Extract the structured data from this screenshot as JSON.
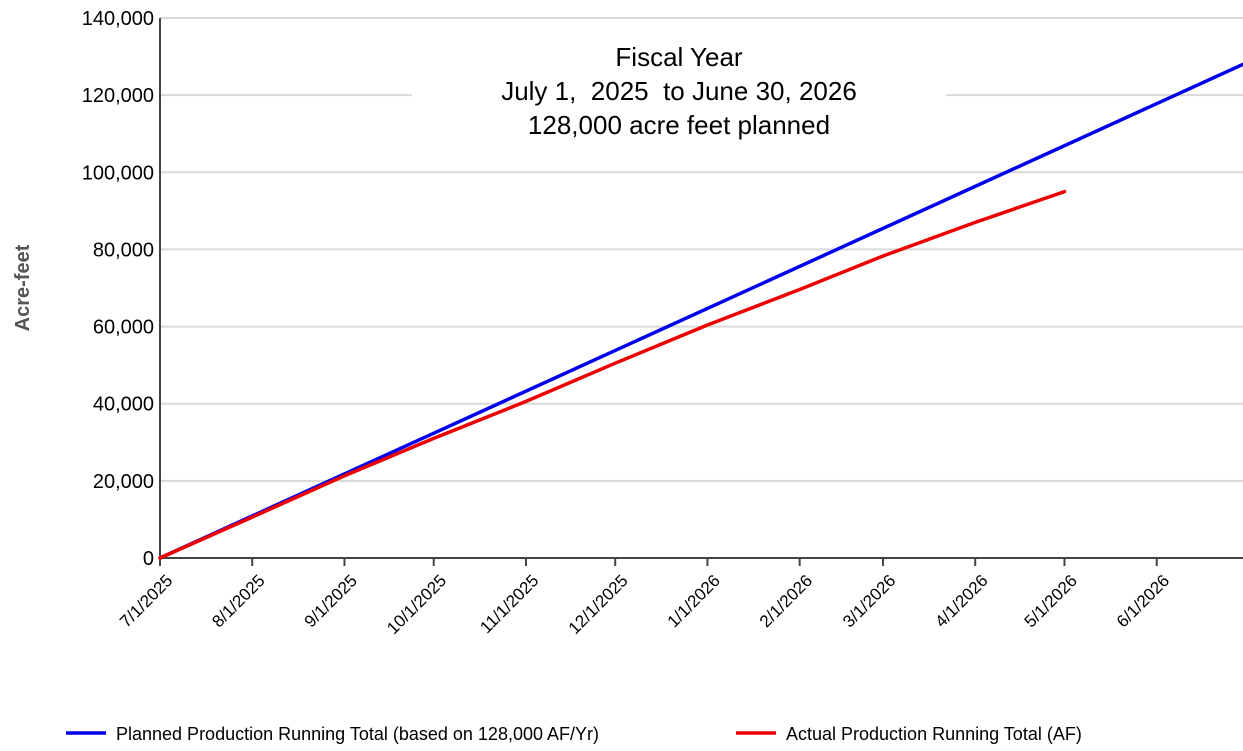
{
  "chart_data": {
    "type": "line",
    "title": "",
    "annotation": [
      "Fiscal Year",
      "July 1,  2025  to June 30, 2026",
      "128,000 acre feet planned"
    ],
    "xlabel": "",
    "ylabel": "Acre-feet",
    "ylim": [
      0,
      140000
    ],
    "xlim": [
      "2025-07-01",
      "2026-06-30"
    ],
    "yticks": [
      0,
      20000,
      40000,
      60000,
      80000,
      100000,
      120000,
      140000
    ],
    "ytick_labels": [
      "0",
      "20,000",
      "40,000",
      "60,000",
      "80,000",
      "100,000",
      "120,000",
      "140,000"
    ],
    "xticks": [
      "2025-07-01",
      "2025-08-01",
      "2025-09-01",
      "2025-10-01",
      "2025-11-01",
      "2025-12-01",
      "2026-01-01",
      "2026-02-01",
      "2026-03-01",
      "2026-04-01",
      "2026-05-01",
      "2026-06-01"
    ],
    "xtick_labels": [
      "7/1/2025",
      "8/1/2025",
      "9/1/2025",
      "10/1/2025",
      "11/1/2025",
      "12/1/2025",
      "1/1/2026",
      "2/1/2026",
      "3/1/2026",
      "4/1/2026",
      "5/1/2026",
      "6/1/2026"
    ],
    "grid": true,
    "legend_position": "bottom",
    "series": [
      {
        "name": "Planned Production Running Total (based on 128,000 AF/Yr)",
        "color": "#0000ee",
        "x": [
          "2025-07-01",
          "2026-06-30"
        ],
        "y": [
          0,
          128000
        ]
      },
      {
        "name": "Actual Production Running Total (AF)",
        "color": "#ee0000",
        "x": [
          "2025-07-01",
          "2025-08-01",
          "2025-09-01",
          "2025-10-01",
          "2025-11-01",
          "2025-12-01",
          "2026-01-01",
          "2026-02-01",
          "2026-03-01",
          "2026-04-01",
          "2026-05-01"
        ],
        "y": [
          0,
          10600,
          21300,
          31000,
          40600,
          50500,
          60400,
          69600,
          78300,
          87000,
          95000
        ]
      }
    ]
  }
}
